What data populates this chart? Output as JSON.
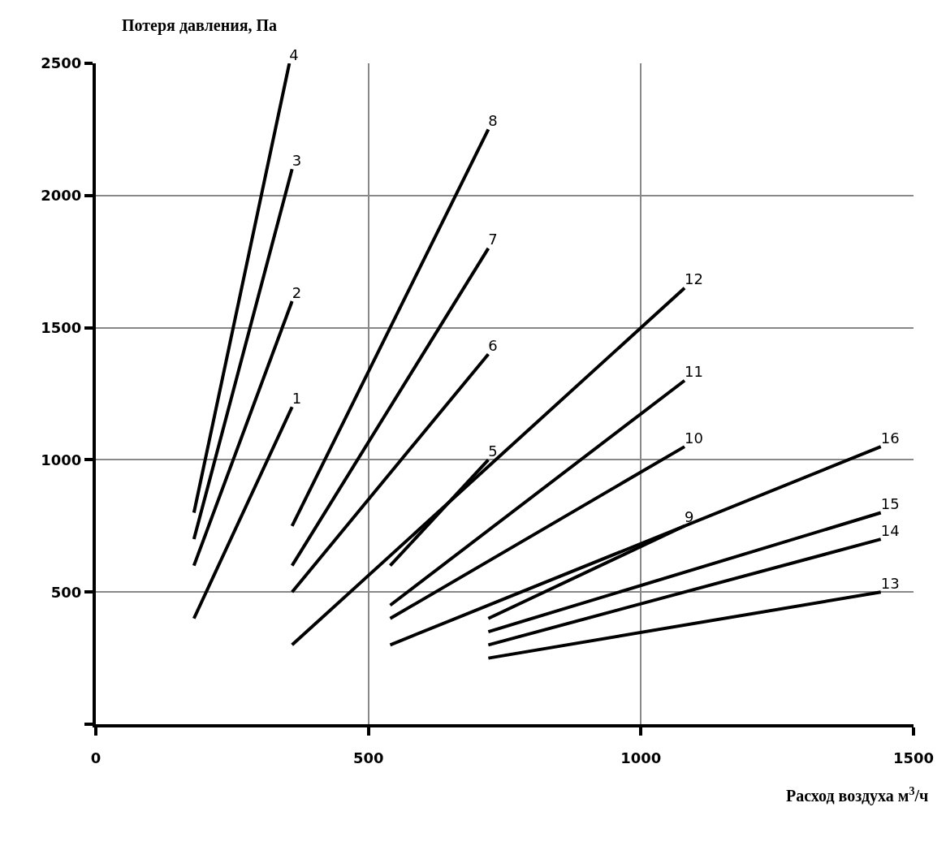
{
  "chart_data": {
    "type": "line",
    "xlabel": "Расход воздуха м$^{3}$/ч",
    "ylabel": "Потеря давления, Па",
    "xlim": [
      0,
      1500
    ],
    "xticks": [
      0,
      500,
      1000,
      1500
    ],
    "ylim": [
      0,
      2500
    ],
    "yticks": [
      {
        "value": 0,
        "label": null
      },
      500,
      1000,
      1500,
      2000,
      2500
    ],
    "grid": true,
    "legend": false,
    "marker": "none",
    "line_style": "solid",
    "series": [
      {
        "name": "1",
        "color": "#000000",
        "x": [
          180,
          360
        ],
        "values": [
          400,
          1200
        ]
      },
      {
        "name": "2",
        "color": "#000000",
        "x": [
          180,
          360
        ],
        "values": [
          600,
          1600
        ]
      },
      {
        "name": "3",
        "color": "#000000",
        "x": [
          180,
          360
        ],
        "values": [
          700,
          2100
        ]
      },
      {
        "name": "4",
        "color": "#000000",
        "x": [
          180,
          355
        ],
        "values": [
          800,
          2500
        ]
      },
      {
        "name": "5",
        "color": "#000000",
        "x": [
          540,
          720
        ],
        "values": [
          600,
          1000
        ]
      },
      {
        "name": "6",
        "color": "#000000",
        "x": [
          360,
          720
        ],
        "values": [
          500,
          1400
        ]
      },
      {
        "name": "7",
        "color": "#000000",
        "x": [
          360,
          720
        ],
        "values": [
          600,
          1800
        ]
      },
      {
        "name": "8",
        "color": "#000000",
        "x": [
          360,
          720
        ],
        "values": [
          750,
          2250
        ]
      },
      {
        "name": "9",
        "color": "#000000",
        "x": [
          720,
          1080
        ],
        "values": [
          400,
          750
        ]
      },
      {
        "name": "10",
        "color": "#000000",
        "x": [
          540,
          1080
        ],
        "values": [
          400,
          1050
        ]
      },
      {
        "name": "11",
        "color": "#000000",
        "x": [
          540,
          1080
        ],
        "values": [
          450,
          1300
        ]
      },
      {
        "name": "12",
        "color": "#000000",
        "x": [
          360,
          1080
        ],
        "values": [
          300,
          1650
        ]
      },
      {
        "name": "13",
        "color": "#000000",
        "x": [
          720,
          1440
        ],
        "values": [
          250,
          500
        ]
      },
      {
        "name": "14",
        "color": "#000000",
        "x": [
          720,
          1440
        ],
        "values": [
          300,
          700
        ]
      },
      {
        "name": "15",
        "color": "#000000",
        "x": [
          720,
          1440
        ],
        "values": [
          350,
          800
        ]
      },
      {
        "name": "16",
        "color": "#000000",
        "x": [
          540,
          1440
        ],
        "values": [
          300,
          1050
        ]
      }
    ]
  }
}
